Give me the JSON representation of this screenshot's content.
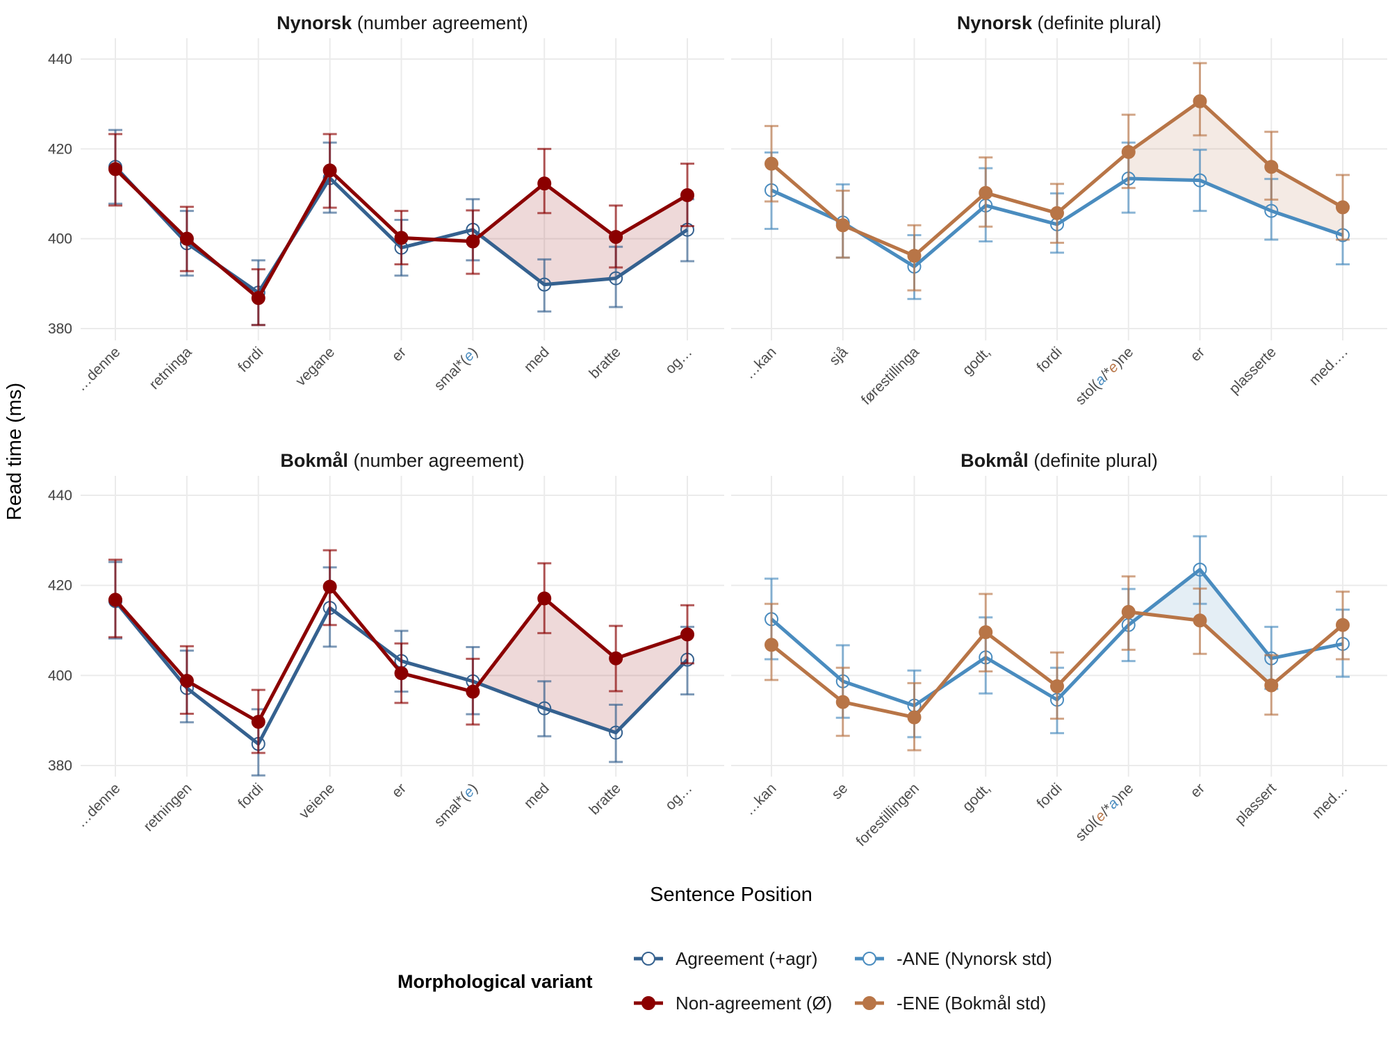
{
  "figure": {
    "ylabel": "Read time (ms)",
    "xlabel": "Sentence Position",
    "legend": {
      "title": "Morphological variant",
      "placement": "bottom",
      "entries": [
        {
          "key": "agr",
          "label": "Agreement (+agr)"
        },
        {
          "key": "ane",
          "label": "-ANE (Nynorsk std)"
        },
        {
          "key": "nonagr",
          "label": "Non-agreement (Ø)"
        },
        {
          "key": "ene",
          "label": "-ENE (Bokmål std)"
        }
      ]
    }
  },
  "colors": {
    "agr": "#35618f",
    "nonagr": "#8b0000",
    "ane": "#4a8cbf",
    "ene": "#b87547",
    "grid": "#ebebeb",
    "highlight_blue": "#4a8cbf",
    "highlight_orange": "#b87547"
  },
  "chart_data": [
    {
      "type": "line",
      "title_bold": "Nynorsk",
      "title_rest": "(number agreement)",
      "ylim": [
        375,
        444
      ],
      "yticks": [
        380,
        400,
        420,
        440
      ],
      "grid": true,
      "categories": [
        [
          {
            "t": "…denne"
          }
        ],
        [
          {
            "t": "retninga"
          }
        ],
        [
          {
            "t": "fordi"
          }
        ],
        [
          {
            "t": "vegane"
          }
        ],
        [
          {
            "t": "er"
          }
        ],
        [
          {
            "t": "smal*("
          },
          {
            "t": "e",
            "c": "#4a8cbf",
            "i": true
          },
          {
            "t": ")"
          }
        ],
        [
          {
            "t": "med"
          }
        ],
        [
          {
            "t": "bratte"
          }
        ],
        [
          {
            "t": "og…"
          }
        ]
      ],
      "series": [
        {
          "key": "agr",
          "values": [
            416,
            399,
            388,
            413.5,
            398,
            402,
            389.8,
            391.2,
            402
          ],
          "lower": [
            407.8,
            391.8,
            380.8,
            405.8,
            391.8,
            395.2,
            383.8,
            384.8,
            395
          ],
          "upper": [
            424.2,
            406.2,
            395.2,
            421.4,
            404.2,
            408.8,
            395.4,
            398.2,
            408.8
          ]
        },
        {
          "key": "nonagr",
          "values": [
            415.5,
            400,
            386.8,
            415.2,
            400.2,
            399.4,
            412.3,
            400.4,
            409.7
          ],
          "lower": [
            407.4,
            392.8,
            380.8,
            406.9,
            394.3,
            392.2,
            405.7,
            393.6,
            402.8
          ],
          "upper": [
            423.3,
            407.1,
            393.2,
            423.3,
            406.2,
            406.3,
            420,
            407.4,
            416.7
          ]
        }
      ],
      "highlight": {
        "from": 5,
        "to": 8,
        "upper": "nonagr",
        "lower": "agr",
        "color": "#8b0000"
      }
    },
    {
      "type": "line",
      "title_bold": "Nynorsk",
      "title_rest": "(definite plural)",
      "ylim": [
        375,
        444
      ],
      "yticks": [
        380,
        400,
        420,
        440
      ],
      "grid": true,
      "categories": [
        [
          {
            "t": "…kan"
          }
        ],
        [
          {
            "t": "sjå"
          }
        ],
        [
          {
            "t": "førestillinga"
          }
        ],
        [
          {
            "t": "godt,"
          }
        ],
        [
          {
            "t": "fordi"
          }
        ],
        [
          {
            "t": "stol("
          },
          {
            "t": "a",
            "c": "#4a8cbf",
            "i": true
          },
          {
            "t": "/*"
          },
          {
            "t": "e",
            "c": "#b87547",
            "i": true
          },
          {
            "t": ")ne"
          }
        ],
        [
          {
            "t": "er"
          }
        ],
        [
          {
            "t": "plasserte"
          }
        ],
        [
          {
            "t": "med…."
          }
        ]
      ],
      "series": [
        {
          "key": "ane",
          "values": [
            410.8,
            403.6,
            393.8,
            407.4,
            403.2,
            413.4,
            413,
            406.2,
            400.8
          ],
          "lower": [
            402.2,
            395.8,
            386.6,
            399.4,
            396.9,
            405.8,
            406.2,
            399.8,
            394.3
          ],
          "upper": [
            419.2,
            412.1,
            400.8,
            415.7,
            410.1,
            421.4,
            419.8,
            413.3,
            407.2
          ]
        },
        {
          "key": "ene",
          "values": [
            416.7,
            403,
            396.2,
            410.2,
            405.7,
            419.3,
            430.6,
            416,
            407
          ],
          "lower": [
            408.3,
            395.8,
            388.5,
            402.7,
            399.1,
            411.3,
            423,
            408.7,
            399.8
          ],
          "upper": [
            425.1,
            410.7,
            403,
            418.1,
            412.2,
            427.6,
            439.1,
            423.8,
            414.2
          ]
        }
      ],
      "highlight": {
        "from": 5,
        "to": 8,
        "upper": "ene",
        "lower": "ane",
        "color": "#b87547"
      }
    },
    {
      "type": "line",
      "title_bold": "Bokmål",
      "title_rest": "(number agreement)",
      "ylim": [
        375,
        444
      ],
      "yticks": [
        380,
        400,
        420,
        440
      ],
      "grid": true,
      "categories": [
        [
          {
            "t": "…denne"
          }
        ],
        [
          {
            "t": "retningen"
          }
        ],
        [
          {
            "t": "fordi"
          }
        ],
        [
          {
            "t": "veiene"
          }
        ],
        [
          {
            "t": "er"
          }
        ],
        [
          {
            "t": "smal*("
          },
          {
            "t": "e",
            "c": "#4a8cbf",
            "i": true
          },
          {
            "t": ")"
          }
        ],
        [
          {
            "t": "med"
          }
        ],
        [
          {
            "t": "bratte"
          }
        ],
        [
          {
            "t": "og…"
          }
        ]
      ],
      "series": [
        {
          "key": "agr",
          "values": [
            416.5,
            397.2,
            384.8,
            415,
            403.2,
            398.7,
            392.7,
            387.3,
            403.5
          ],
          "lower": [
            408.2,
            389.6,
            377.8,
            406.4,
            396.4,
            391.4,
            386.5,
            380.8,
            395.8
          ],
          "upper": [
            425.2,
            405.5,
            392.5,
            424,
            409.9,
            406.3,
            398.7,
            393.5,
            410.8
          ]
        },
        {
          "key": "nonagr",
          "values": [
            416.8,
            398.8,
            389.7,
            419.7,
            400.5,
            396.4,
            417.1,
            403.8,
            409.1
          ],
          "lower": [
            408.5,
            391.5,
            382.8,
            411.2,
            393.9,
            389.1,
            409.4,
            396.5,
            402.7
          ],
          "upper": [
            425.7,
            406.5,
            396.8,
            427.8,
            407.1,
            403.7,
            424.9,
            411,
            415.6
          ]
        }
      ],
      "highlight": {
        "from": 5,
        "to": 8,
        "upper": "nonagr",
        "lower": "agr",
        "color": "#8b0000"
      }
    },
    {
      "type": "line",
      "title_bold": "Bokmål",
      "title_rest": "(definite plural)",
      "ylim": [
        375,
        444
      ],
      "yticks": [
        380,
        400,
        420,
        440
      ],
      "grid": true,
      "categories": [
        [
          {
            "t": "…kan"
          }
        ],
        [
          {
            "t": "se"
          }
        ],
        [
          {
            "t": "forestillingen"
          }
        ],
        [
          {
            "t": "godt,"
          }
        ],
        [
          {
            "t": "fordi"
          }
        ],
        [
          {
            "t": "stol("
          },
          {
            "t": "e",
            "c": "#b87547",
            "i": true
          },
          {
            "t": "/*"
          },
          {
            "t": "a",
            "c": "#4a8cbf",
            "i": true
          },
          {
            "t": ")ne"
          }
        ],
        [
          {
            "t": "er"
          }
        ],
        [
          {
            "t": "plassert"
          }
        ],
        [
          {
            "t": "med…"
          }
        ]
      ],
      "series": [
        {
          "key": "ane",
          "values": [
            412.5,
            398.7,
            393.3,
            404,
            394.6,
            411.2,
            423.5,
            403.8,
            407
          ],
          "lower": [
            403.6,
            390.6,
            386.3,
            396,
            387.2,
            403.2,
            415.9,
            397,
            399.7
          ],
          "upper": [
            421.5,
            406.7,
            401.1,
            412.9,
            401.7,
            419.2,
            430.9,
            410.8,
            414.6
          ]
        },
        {
          "key": "ene",
          "values": [
            406.8,
            394.1,
            390.7,
            409.6,
            397.6,
            414.1,
            412.2,
            397.8,
            411.2
          ],
          "lower": [
            399,
            386.6,
            383.4,
            400.9,
            390.4,
            405.7,
            404.8,
            391.3,
            403.6
          ],
          "upper": [
            415.9,
            401.7,
            398.3,
            418.1,
            405.1,
            422,
            419.3,
            404.5,
            418.6
          ]
        }
      ],
      "highlight": {
        "from": 5,
        "to": 7,
        "upper": "ane",
        "lower": "ene",
        "color": "#4a8cbf"
      }
    }
  ]
}
